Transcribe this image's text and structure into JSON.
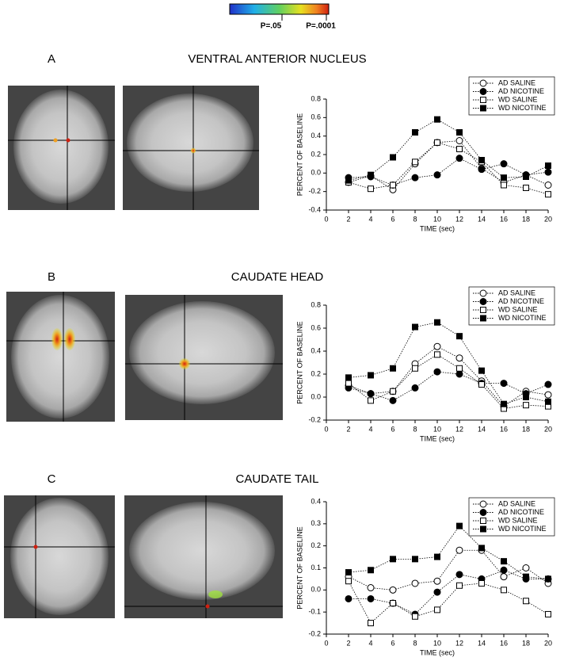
{
  "colorbar_labels": [
    "P=.05",
    "P=.0001"
  ],
  "chart_data": [
    {
      "type": "line",
      "panel": "A",
      "title": "VENTRAL ANTERIOR NUCLEUS",
      "x_label": "TIME (sec)",
      "y_label": "PERCENT OF BASELINE",
      "x": [
        2,
        4,
        6,
        8,
        10,
        12,
        14,
        16,
        18,
        20
      ],
      "xlim": [
        0,
        20
      ],
      "xticks": [
        0,
        2,
        4,
        6,
        8,
        10,
        12,
        14,
        16,
        18,
        20
      ],
      "ylim": [
        -0.4,
        0.8
      ],
      "yticks": [
        -0.4,
        -0.2,
        {
          "value": 0,
          "label": "0.0"
        },
        0.2,
        0.4,
        0.6,
        0.8
      ],
      "legend": "upper right",
      "series": [
        {
          "name": "AD SALINE",
          "color": "#000000",
          "marker": "circle",
          "filled": false,
          "values": [
            -0.1,
            -0.03,
            -0.18,
            0.1,
            0.33,
            0.35,
            0.05,
            -0.1,
            -0.02,
            -0.13
          ]
        },
        {
          "name": "AD NICOTINE",
          "color": "#000000",
          "marker": "circle",
          "filled": true,
          "values": [
            -0.05,
            -0.04,
            -0.13,
            -0.05,
            -0.02,
            0.16,
            0.04,
            0.1,
            -0.02,
            0.01
          ]
        },
        {
          "name": "WD SALINE",
          "color": "#000000",
          "marker": "square",
          "filled": false,
          "values": [
            -0.1,
            -0.17,
            -0.13,
            0.12,
            0.33,
            0.26,
            0.12,
            -0.13,
            -0.16,
            -0.23
          ]
        },
        {
          "name": "WD NICOTINE",
          "color": "#000000",
          "marker": "square",
          "filled": true,
          "values": [
            -0.08,
            -0.02,
            0.17,
            0.44,
            0.58,
            0.44,
            0.14,
            -0.05,
            -0.04,
            0.08
          ]
        }
      ]
    },
    {
      "type": "line",
      "panel": "B",
      "title": "CAUDATE HEAD",
      "x_label": "TIME (sec)",
      "y_label": "PERCENT OF BASELINE",
      "x": [
        2,
        4,
        6,
        8,
        10,
        12,
        14,
        16,
        18,
        20
      ],
      "xlim": [
        0,
        20
      ],
      "xticks": [
        0,
        2,
        4,
        6,
        8,
        10,
        12,
        14,
        16,
        18,
        20
      ],
      "ylim": [
        -0.2,
        0.8
      ],
      "yticks": [
        -0.2,
        {
          "value": 0,
          "label": "0.0"
        },
        0.2,
        0.4,
        0.6,
        0.8
      ],
      "legend": "upper right",
      "series": [
        {
          "name": "AD SALINE",
          "color": "#000000",
          "marker": "circle",
          "filled": false,
          "values": [
            0.1,
            0.03,
            0.05,
            0.29,
            0.44,
            0.34,
            0.14,
            -0.08,
            0.05,
            0.02
          ]
        },
        {
          "name": "AD NICOTINE",
          "color": "#000000",
          "marker": "circle",
          "filled": true,
          "values": [
            0.08,
            0.03,
            -0.03,
            0.08,
            0.22,
            0.2,
            0.12,
            0.12,
            0.03,
            0.11
          ]
        },
        {
          "name": "WD SALINE",
          "color": "#000000",
          "marker": "square",
          "filled": false,
          "values": [
            0.12,
            -0.03,
            0.05,
            0.25,
            0.37,
            0.25,
            0.11,
            -0.1,
            -0.07,
            -0.08
          ]
        },
        {
          "name": "WD NICOTINE",
          "color": "#000000",
          "marker": "square",
          "filled": true,
          "values": [
            0.17,
            0.19,
            0.25,
            0.61,
            0.65,
            0.53,
            0.23,
            -0.06,
            0.0,
            -0.04
          ]
        }
      ]
    },
    {
      "type": "line",
      "panel": "C",
      "title": "CAUDATE TAIL",
      "x_label": "TIME (sec)",
      "y_label": "PERCENT OF BASELINE",
      "x": [
        2,
        4,
        6,
        8,
        10,
        12,
        14,
        16,
        18,
        20
      ],
      "xlim": [
        0,
        20
      ],
      "xticks": [
        0,
        2,
        4,
        6,
        8,
        10,
        12,
        14,
        16,
        18,
        20
      ],
      "ylim": [
        -0.2,
        0.4
      ],
      "yticks": [
        -0.2,
        -0.1,
        {
          "value": 0,
          "label": "0.0"
        },
        0.1,
        0.2,
        0.3,
        0.4
      ],
      "legend": "upper right",
      "series": [
        {
          "name": "AD SALINE",
          "color": "#000000",
          "marker": "circle",
          "filled": false,
          "values": [
            0.06,
            0.01,
            0.0,
            0.03,
            0.04,
            0.18,
            0.18,
            0.06,
            0.1,
            0.03
          ]
        },
        {
          "name": "AD NICOTINE",
          "color": "#000000",
          "marker": "circle",
          "filled": true,
          "values": [
            -0.04,
            -0.04,
            -0.06,
            -0.11,
            -0.01,
            0.07,
            0.05,
            0.09,
            0.05,
            0.05
          ]
        },
        {
          "name": "WD SALINE",
          "color": "#000000",
          "marker": "square",
          "filled": false,
          "values": [
            0.04,
            -0.15,
            -0.06,
            -0.12,
            -0.09,
            0.02,
            0.03,
            0.0,
            -0.05,
            -0.11
          ]
        },
        {
          "name": "WD NICOTINE",
          "color": "#000000",
          "marker": "square",
          "filled": true,
          "values": [
            0.08,
            0.09,
            0.14,
            0.14,
            0.15,
            0.29,
            0.19,
            0.13,
            0.06,
            0.05
          ]
        }
      ]
    }
  ]
}
